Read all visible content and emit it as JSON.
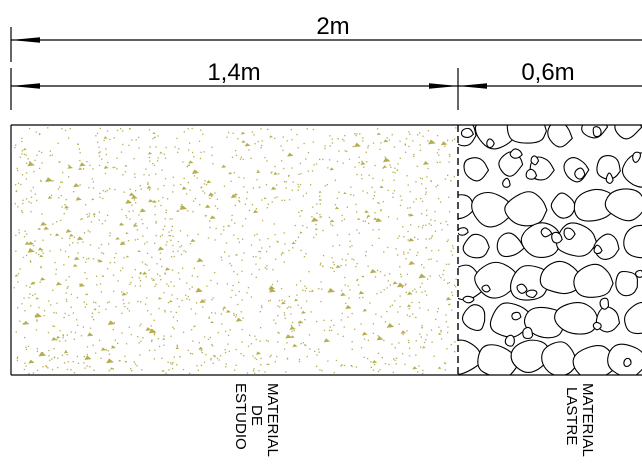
{
  "dimensions": {
    "total": "2m",
    "study_width": "1,4m",
    "lastre_width": "0,6m"
  },
  "labels": {
    "study": [
      "MATERIAL",
      "DE",
      "ESTUDIO"
    ],
    "lastre": [
      "MATERIAL",
      "LASTRE"
    ]
  },
  "colors": {
    "line": "#000000",
    "speckle": "#b5ad4e",
    "background": "#ffffff"
  },
  "hatches": {
    "study": "sand-stipple",
    "lastre": "rounded-gravel"
  }
}
